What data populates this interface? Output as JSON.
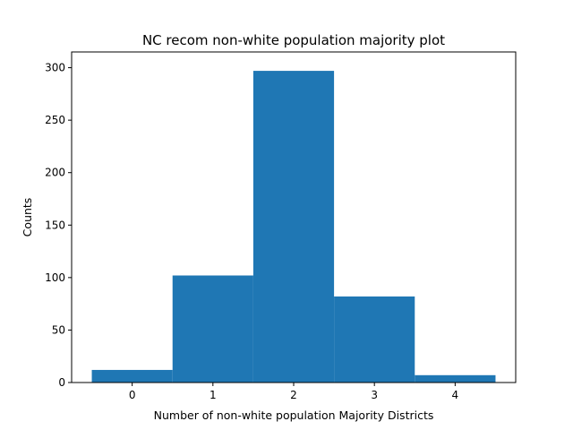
{
  "chart_data": {
    "type": "bar",
    "title": "NC recom non-white population majority plot",
    "xlabel": "Number of non-white population Majority Districts",
    "ylabel": "Counts",
    "categories": [
      "0",
      "1",
      "2",
      "3",
      "4"
    ],
    "x": [
      0,
      1,
      2,
      3,
      4
    ],
    "values": [
      12,
      102,
      297,
      82,
      7
    ],
    "bar_color": "#1f77b4",
    "xlim": [
      -0.75,
      4.75
    ],
    "ylim": [
      0,
      315
    ],
    "xticks": [
      0,
      1,
      2,
      3,
      4
    ],
    "yticks": [
      0,
      50,
      100,
      150,
      200,
      250,
      300
    ],
    "grid": false,
    "legend": "none"
  }
}
